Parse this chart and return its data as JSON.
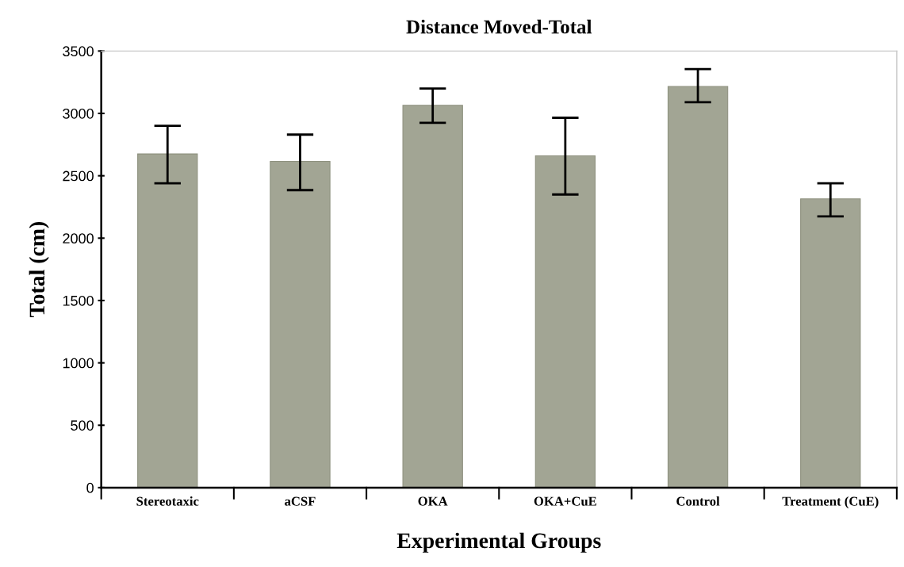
{
  "chart_data": {
    "type": "bar",
    "title": "Distance Moved-Total",
    "xlabel": "Experimental Groups",
    "ylabel": "Total (cm)",
    "categories": [
      "Stereotaxic",
      "aCSF",
      "OKA",
      "OKA+CuE",
      "Control",
      "Treatment (CuE)"
    ],
    "series": [
      {
        "color": "#a2a594",
        "values": [
          2675,
          2615,
          3065,
          2660,
          3215,
          2315
        ],
        "errors": [
          [
            2440,
            2900
          ],
          [
            2385,
            2830
          ],
          [
            2925,
            3200
          ],
          [
            2350,
            2965
          ],
          [
            3090,
            3355
          ],
          [
            2175,
            2440
          ]
        ]
      }
    ],
    "ylim": [
      0,
      3500
    ],
    "yticks": [
      0,
      500,
      1000,
      1500,
      2000,
      2500,
      3000,
      3500
    ]
  }
}
